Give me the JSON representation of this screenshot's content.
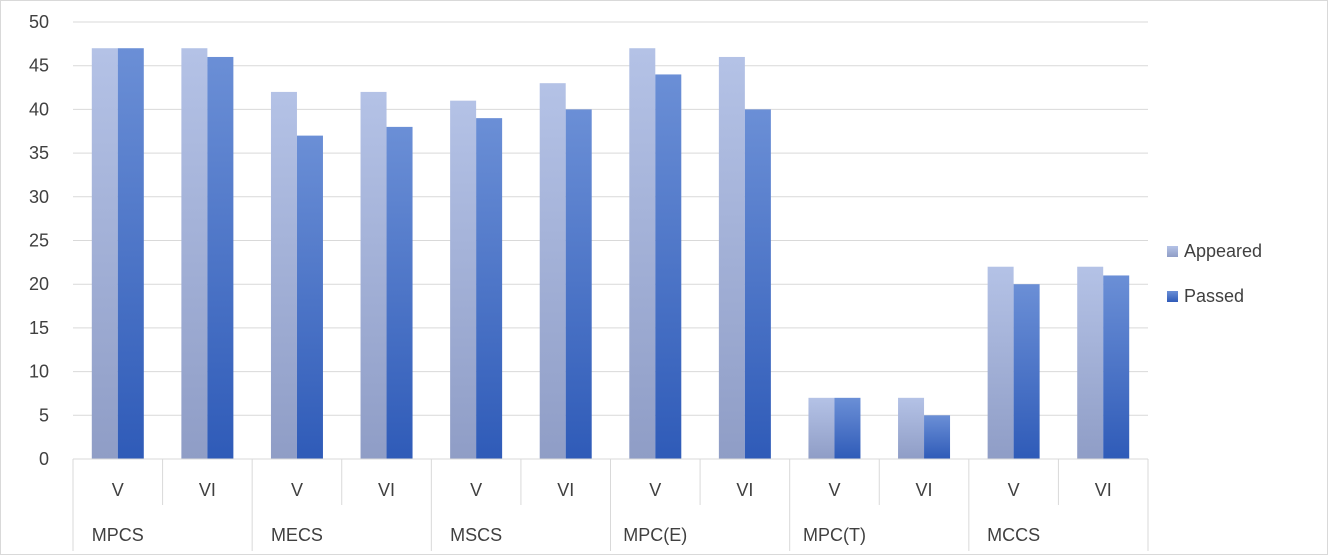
{
  "chart_data": {
    "type": "bar",
    "title": "",
    "xlabel": "",
    "ylabel": "",
    "ylim": [
      0,
      50
    ],
    "yticks": [
      0,
      5,
      10,
      15,
      20,
      25,
      30,
      35,
      40,
      45,
      50
    ],
    "grid": true,
    "legend_position": "right",
    "categories": [
      "V",
      "VI",
      "V",
      "VI",
      "V",
      "VI",
      "V",
      "VI",
      "V",
      "VI",
      "V",
      "VI"
    ],
    "groups": [
      "MPCS",
      "MECS",
      "MSCS",
      "MPC(E)",
      "MPC(T)",
      "MCCS"
    ],
    "series": [
      {
        "name": "Appeared",
        "color": "#a9b8dd",
        "values": [
          47,
          47,
          42,
          42,
          41,
          43,
          47,
          46,
          7,
          7,
          22,
          22
        ]
      },
      {
        "name": "Passed",
        "color": "#4472c4",
        "values": [
          47,
          46,
          37,
          38,
          39,
          40,
          44,
          40,
          7,
          5,
          20,
          21
        ]
      }
    ]
  }
}
